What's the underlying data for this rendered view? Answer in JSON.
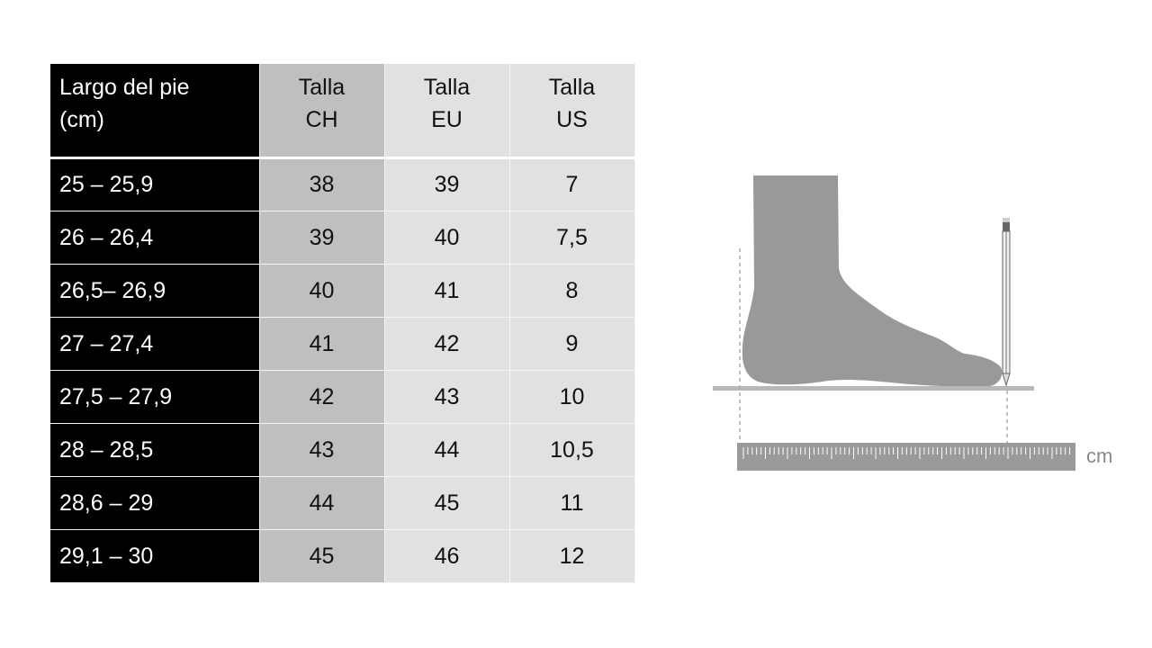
{
  "table": {
    "headers": [
      [
        "Largo del pie",
        "(cm)"
      ],
      [
        "Talla",
        "CH"
      ],
      [
        "Talla",
        "EU"
      ],
      [
        "Talla",
        "US"
      ]
    ],
    "rows": [
      [
        "25 – 25,9",
        "38",
        "39",
        "7"
      ],
      [
        "26 – 26,4",
        "39",
        "40",
        "7,5"
      ],
      [
        "26,5– 26,9",
        "40",
        "41",
        "8"
      ],
      [
        "27 – 27,4",
        "41",
        "42",
        "9"
      ],
      [
        "27,5 – 27,9",
        "42",
        "43",
        "10"
      ],
      [
        "28 – 28,5",
        "43",
        "44",
        "10,5"
      ],
      [
        "28,6 – 29",
        "44",
        "45",
        "11"
      ],
      [
        "29,1 – 30",
        "45",
        "46",
        "12"
      ]
    ]
  },
  "illustration": {
    "icons": [
      "foot-icon",
      "pencil-icon",
      "ruler-icon"
    ],
    "unit_label": "cm",
    "colors": {
      "foot": "#999999",
      "floor": "#b3b9be",
      "ruler": "#9a9a9a"
    }
  }
}
